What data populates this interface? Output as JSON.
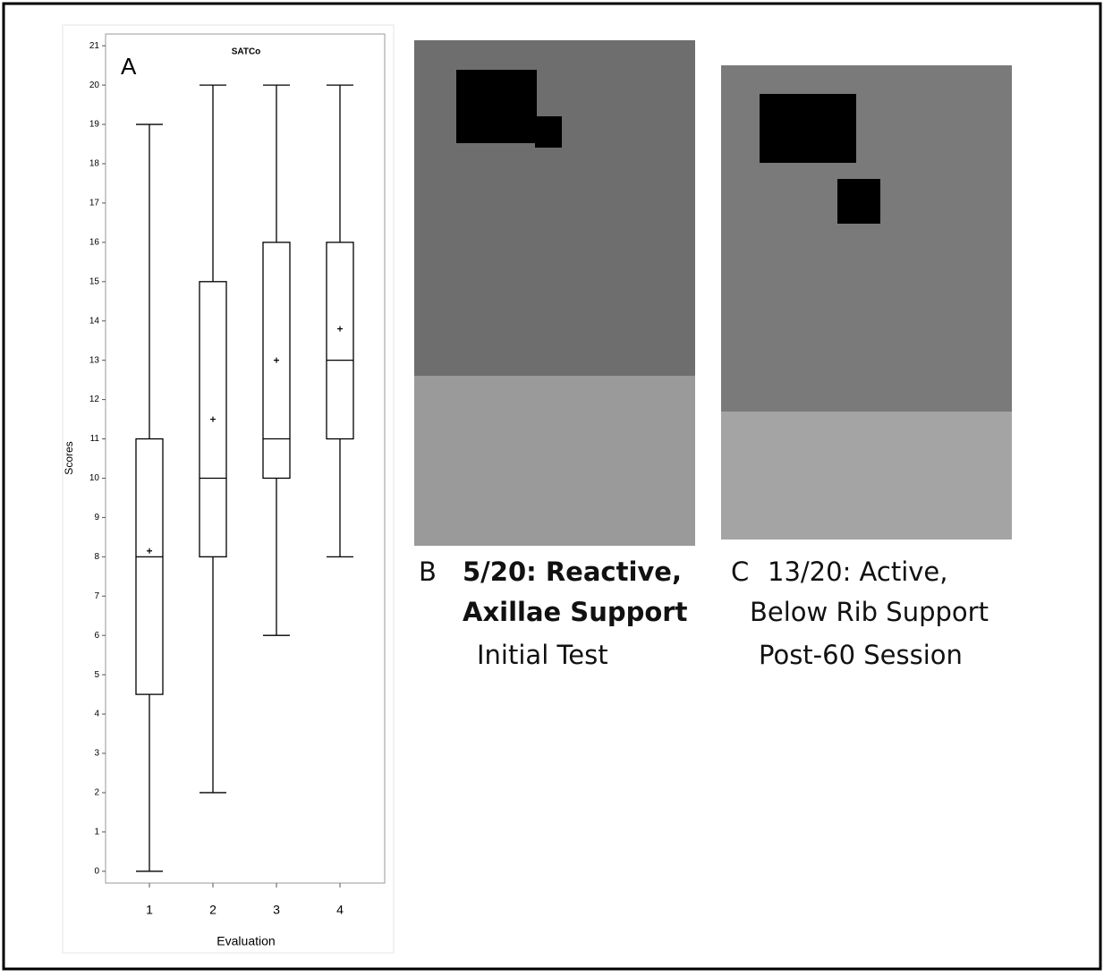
{
  "chart_data": {
    "type": "box",
    "title": "SATCo",
    "annotation": "A",
    "xlabel": "Evaluation",
    "ylabel": "Scores",
    "categories": [
      "1",
      "2",
      "3",
      "4"
    ],
    "min": [
      0,
      2,
      6,
      8
    ],
    "q1": [
      4.5,
      8,
      10,
      11
    ],
    "median": [
      8,
      10,
      11,
      13
    ],
    "q3": [
      11,
      15,
      16,
      16
    ],
    "max": [
      19,
      20,
      20,
      20
    ],
    "mean": [
      8.15,
      11.5,
      13,
      13.8
    ],
    "color": "#000000",
    "ylim": [
      -0.3,
      21.3
    ],
    "yticks": [
      0,
      1,
      2,
      3,
      4,
      5,
      6,
      7,
      8,
      9,
      10,
      11,
      12,
      13,
      14,
      15,
      16,
      17,
      18,
      19,
      20,
      21
    ]
  },
  "panels": [
    {
      "letter": "B",
      "lines": [
        "5/20: Reactive,",
        "Axillae Support",
        "Initial Test"
      ]
    },
    {
      "letter": "C",
      "lines": [
        "13/20: Active,",
        "Below Rib Support",
        "Post-60 Session"
      ]
    }
  ]
}
